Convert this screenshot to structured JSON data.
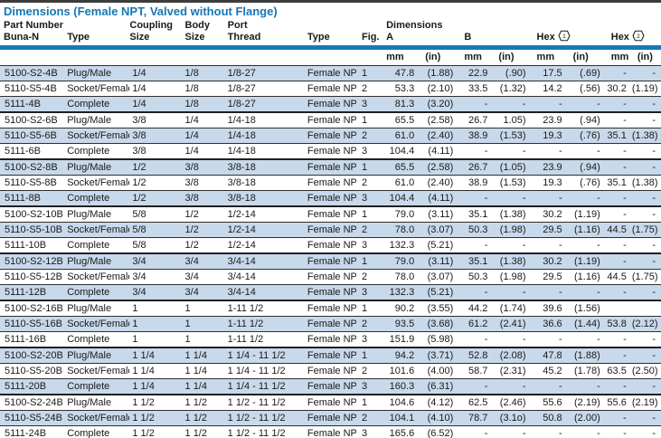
{
  "title": "Dimensions (Female NPT, Valved without Flange)",
  "colors": {
    "title_blue": "#1576b4",
    "header_rule_blue": "#1878b6",
    "shaded_row_blue": "#c8d9eb",
    "row_line": "#2f2f2f",
    "text": "#1a1a1a"
  },
  "table": {
    "header": {
      "part_number": {
        "line1": "Part Number",
        "line2": "Buna-N"
      },
      "type": "Type",
      "coupling": {
        "line1": "Coupling",
        "line2": "Size"
      },
      "body": {
        "line1": "Body",
        "line2": "Size"
      },
      "port_thread": {
        "line1": "Port",
        "line2": "Thread"
      },
      "type2": "Type",
      "fig": "Fig.",
      "dimensions_a": {
        "line1": "Dimensions",
        "line2": "A"
      },
      "b": "B",
      "hex1": {
        "label": "Hex",
        "digit": "1"
      },
      "hex2": {
        "label": "Hex",
        "digit": "2"
      },
      "units_mm": "mm",
      "units_in": "(in)"
    },
    "field_names": [
      "part-number",
      "type",
      "coupling-size",
      "body-size",
      "port-thread",
      "port-type",
      "fig",
      "a-mm",
      "a-in",
      "b-mm",
      "b-in",
      "hex1-mm",
      "hex1-in",
      "hex2-mm",
      "hex2-in"
    ],
    "rows": [
      [
        "5100-S2-4B",
        "Plug/Male",
        "1/4",
        "1/8",
        "1/8-27",
        "Female NPT",
        "1",
        "47.8",
        "(1.88)",
        "22.9",
        "(.90)",
        "17.5",
        "(.69)",
        "-",
        "-"
      ],
      [
        "5110-S5-4B",
        "Socket/Female",
        "1/4",
        "1/8",
        "1/8-27",
        "Female NPT",
        "2",
        "53.3",
        "(2.10)",
        "33.5",
        "(1.32)",
        "14.2",
        "(.56)",
        "30.2",
        "(1.19)"
      ],
      [
        "5111-4B",
        "Complete",
        "1/4",
        "1/8",
        "1/8-27",
        "Female NPT",
        "3",
        "81.3",
        "(3.20)",
        "-",
        "-",
        "-",
        "-",
        "-",
        "-"
      ],
      [
        "5100-S2-6B",
        "Plug/Male",
        "3/8",
        "1/4",
        "1/4-18",
        "Female NPT",
        "1",
        "65.5",
        "(2.58)",
        "26.7",
        "1.05)",
        "23.9",
        "(.94)",
        "-",
        "-"
      ],
      [
        "5110-S5-6B",
        "Socket/Female",
        "3/8",
        "1/4",
        "1/4-18",
        "Female NPT",
        "2",
        "61.0",
        "(2.40)",
        "38.9",
        "(1.53)",
        "19.3",
        "(.76)",
        "35.1",
        "(1.38)"
      ],
      [
        "5111-6B",
        "Complete",
        "3/8",
        "1/4",
        "1/4-18",
        "Female NPT",
        "3",
        "104.4",
        "(4.11)",
        "-",
        "-",
        "-",
        "-",
        "-",
        "-"
      ],
      [
        "5100-S2-8B",
        "Plug/Male",
        "1/2",
        "3/8",
        "3/8-18",
        "Female NPT",
        "1",
        "65.5",
        "(2.58)",
        "26.7",
        "(1.05)",
        "23.9",
        "(.94)",
        "-",
        "-"
      ],
      [
        "5110-S5-8B",
        "Socket/Female",
        "1/2",
        "3/8",
        "3/8-18",
        "Female NPT",
        "2",
        "61.0",
        "(2.40)",
        "38.9",
        "(1.53)",
        "19.3",
        "(.76)",
        "35.1",
        "(1.38)"
      ],
      [
        "5111-8B",
        "Complete",
        "1/2",
        "3/8",
        "3/8-18",
        "Female NPT",
        "3",
        "104.4",
        "(4.11)",
        "-",
        "-",
        "-",
        "-",
        "-",
        "-"
      ],
      [
        "5100-S2-10B",
        "Plug/Male",
        "5/8",
        "1/2",
        "1/2-14",
        "Female NPT",
        "1",
        "79.0",
        "(3.11)",
        "35.1",
        "(1.38)",
        "30.2",
        "(1.19)",
        "-",
        "-"
      ],
      [
        "5110-S5-10B",
        "Socket/Female",
        "5/8",
        "1/2",
        "1/2-14",
        "Female NPT",
        "2",
        "78.0",
        "(3.07)",
        "50.3",
        "(1.98)",
        "29.5",
        "(1.16)",
        "44.5",
        "(1.75)"
      ],
      [
        "5111-10B",
        "Complete",
        "5/8",
        "1/2",
        "1/2-14",
        "Female NPT",
        "3",
        "132.3",
        "(5.21)",
        "-",
        "-",
        "-",
        "-",
        "-",
        "-"
      ],
      [
        "5100-S2-12B",
        "Plug/Male",
        "3/4",
        "3/4",
        "3/4-14",
        "Female NPT",
        "1",
        "79.0",
        "(3.11)",
        "35.1",
        "(1.38)",
        "30.2",
        "(1.19)",
        "-",
        "-"
      ],
      [
        "5110-S5-12B",
        "Socket/Female",
        "3/4",
        "3/4",
        "3/4-14",
        "Female NPT",
        "2",
        "78.0",
        "(3.07)",
        "50.3",
        "(1.98)",
        "29.5",
        "(1.16)",
        "44.5",
        "(1.75)"
      ],
      [
        "5111-12B",
        "Complete",
        "3/4",
        "3/4",
        "3/4-14",
        "Female NPT",
        "3",
        "132.3",
        "(5.21)",
        "-",
        "-",
        "-",
        "-",
        "-",
        "-"
      ],
      [
        "5100-S2-16B",
        "Plug/Male",
        "1",
        "1",
        "1-11 1/2",
        "Female NPT",
        "1",
        "90.2",
        "(3.55)",
        "44.2",
        "(1.74)",
        "39.6",
        "(1.56)",
        "",
        ""
      ],
      [
        "5110-S5-16B",
        "Socket/Female",
        "1",
        "1",
        "1-11 1/2",
        "Female NPT",
        "2",
        "93.5",
        "(3.68)",
        "61.2",
        "(2.41)",
        "36.6",
        "(1.44)",
        "53.8",
        "(2.12)"
      ],
      [
        "5111-16B",
        "Complete",
        "1",
        "1",
        "1-11 1/2",
        "Female NPT",
        "3",
        "151.9",
        "(5.98)",
        "-",
        "-",
        "-",
        "-",
        "-",
        "-"
      ],
      [
        "5100-S2-20B",
        "Plug/Male",
        "1 1/4",
        "1 1/4",
        "1 1/4 - 11 1/2",
        "Female NPT",
        "1",
        "94.2",
        "(3.71)",
        "52.8",
        "(2.08)",
        "47.8",
        "(1.88)",
        "-",
        "-"
      ],
      [
        "5110-S5-20B",
        "Socket/Female",
        "1 1/4",
        "1 1/4",
        "1 1/4 - 11 1/2",
        "Female NPT",
        "2",
        "101.6",
        "(4.00)",
        "58.7",
        "(2.31)",
        "45.2",
        "(1.78)",
        "63.5",
        "(2.50)"
      ],
      [
        "5111-20B",
        "Complete",
        "1 1/4",
        "1 1/4",
        "1 1/4 - 11 1/2",
        "Female NPT",
        "3",
        "160.3",
        "(6.31)",
        "-",
        "-",
        "-",
        "-",
        "-",
        "-"
      ],
      [
        "5100-S2-24B",
        "Plug/Male",
        "1 1/2",
        "1 1/2",
        "1 1/2 - 11 1/2",
        "Female NPT",
        "1",
        "104.6",
        "(4.12)",
        "62.5",
        "(2.46)",
        "55.6",
        "(2.19)",
        "55.6",
        "(2.19)"
      ],
      [
        "5110-S5-24B",
        "Socket/Female",
        "1 1/2",
        "1 1/2",
        "1 1/2 - 11 1/2",
        "Female NPT",
        "2",
        "104.1",
        "(4.10)",
        "78.7",
        "(3.1o)",
        "50.8",
        "(2.00)",
        "-",
        "-"
      ],
      [
        "5111-24B",
        "Complete",
        "1 1/2",
        "1 1/2",
        "1 1/2 - 11 1/2",
        "Female NPT",
        "3",
        "165.6",
        "(6.52)",
        "-",
        "-",
        "-",
        "-",
        "-",
        "-"
      ]
    ]
  }
}
